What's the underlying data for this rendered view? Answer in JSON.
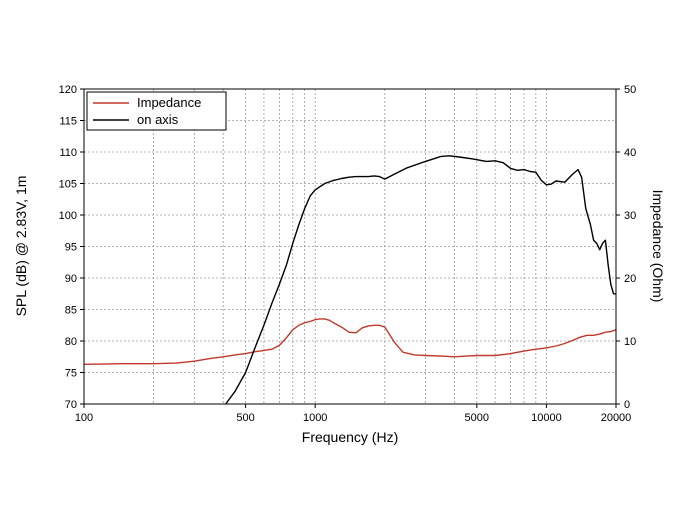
{
  "chart_data": {
    "type": "line",
    "xlabel": "Frequency (Hz)",
    "ylabel": "SPL (dB) @ 2.83V, 1m",
    "y2label": "Impedance (Ohm)",
    "x_scale": "log",
    "xlim": [
      100,
      20000
    ],
    "ylim": [
      70,
      120
    ],
    "y2lim": [
      0,
      50
    ],
    "grid": true,
    "legend_position": "top-left",
    "x_ticks": [
      100,
      500,
      1000,
      5000,
      10000,
      20000
    ],
    "x_tick_labels": [
      "100",
      "500",
      "1000",
      "5000",
      "10000",
      "20000"
    ],
    "y_ticks": [
      70,
      75,
      80,
      85,
      90,
      95,
      100,
      105,
      110,
      115,
      120
    ],
    "y_tick_labels": [
      "70",
      "75",
      "80",
      "85",
      "90",
      "95",
      "100",
      "105",
      "110",
      "115",
      "120"
    ],
    "y2_ticks": [
      0,
      10,
      20,
      30,
      40,
      50
    ],
    "y2_tick_labels": [
      "0",
      "10",
      "20",
      "30",
      "40",
      "50"
    ],
    "series": [
      {
        "name": "Impedance",
        "axis": "right",
        "color": "#c0392b",
        "x": [
          100,
          150,
          200,
          250,
          300,
          350,
          400,
          450,
          500,
          550,
          600,
          650,
          700,
          750,
          800,
          850,
          900,
          950,
          1000,
          1050,
          1100,
          1150,
          1200,
          1300,
          1400,
          1500,
          1600,
          1700,
          1800,
          1900,
          2000,
          2100,
          2200,
          2400,
          2700,
          3000,
          3500,
          4000,
          4500,
          5000,
          6000,
          7000,
          8000,
          9000,
          10000,
          11000,
          12000,
          13000,
          14000,
          15000,
          16000,
          17000,
          18000,
          19000,
          20000
        ],
        "values": [
          6.3,
          6.4,
          6.4,
          6.5,
          6.8,
          7.2,
          7.5,
          7.8,
          8.0,
          8.3,
          8.5,
          8.7,
          9.3,
          10.5,
          11.8,
          12.5,
          12.9,
          13.1,
          13.4,
          13.5,
          13.5,
          13.3,
          12.9,
          12.2,
          11.4,
          11.3,
          12.1,
          12.4,
          12.5,
          12.5,
          12.2,
          11.0,
          9.8,
          8.2,
          7.8,
          7.7,
          7.6,
          7.5,
          7.6,
          7.7,
          7.7,
          8.0,
          8.4,
          8.7,
          8.9,
          9.2,
          9.6,
          10.1,
          10.6,
          10.9,
          10.9,
          11.1,
          11.4,
          11.5,
          11.8
        ]
      },
      {
        "name": "on axis",
        "axis": "left",
        "color": "#000000",
        "x": [
          410,
          450,
          500,
          550,
          600,
          650,
          700,
          750,
          800,
          850,
          900,
          950,
          1000,
          1100,
          1200,
          1300,
          1400,
          1500,
          1600,
          1700,
          1800,
          1900,
          2000,
          2200,
          2500,
          3000,
          3500,
          3800,
          4200,
          4800,
          5500,
          6000,
          6500,
          7000,
          7500,
          8000,
          8500,
          9000,
          9500,
          10000,
          10500,
          11000,
          12000,
          13000,
          13700,
          14200,
          14800,
          15500,
          16000,
          16500,
          17000,
          17500,
          18000,
          18500,
          19000,
          19500,
          20000
        ],
        "values": [
          70,
          72,
          75,
          79,
          82.5,
          86,
          89,
          92,
          95.5,
          98.5,
          101,
          103,
          104,
          105,
          105.5,
          105.8,
          106,
          106.1,
          106.1,
          106.1,
          106.2,
          106.1,
          105.7,
          106.5,
          107.5,
          108.5,
          109.3,
          109.4,
          109.2,
          108.9,
          108.5,
          108.6,
          108.3,
          107.4,
          107.1,
          107.2,
          106.9,
          106.8,
          105.5,
          104.8,
          104.9,
          105.4,
          105.2,
          106.5,
          107.2,
          106.0,
          101.0,
          98.5,
          96.0,
          95.5,
          94.5,
          95.5,
          96.0,
          92.0,
          89.0,
          87.5,
          87.5
        ]
      }
    ]
  }
}
